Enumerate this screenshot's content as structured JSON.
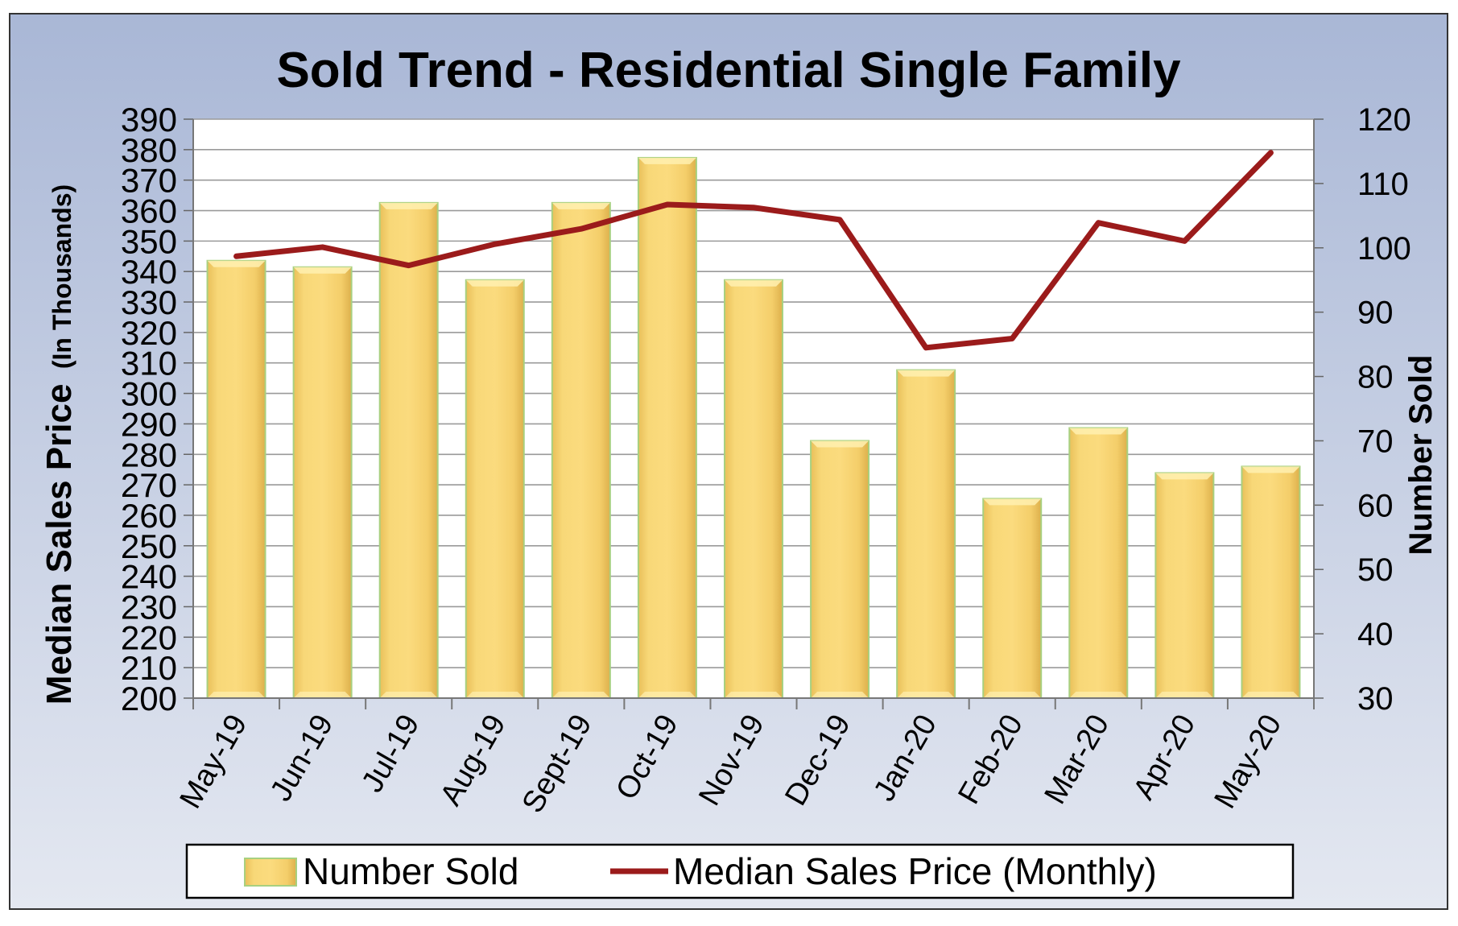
{
  "chart_data": {
    "type": "bar",
    "title": "Sold Trend - Residential Single Family",
    "categories": [
      "May-19",
      "Jun-19",
      "Jul-19",
      "Aug-19",
      "Sept-19",
      "Oct-19",
      "Nov-19",
      "Dec-19",
      "Jan-20",
      "Feb-20",
      "Mar-20",
      "Apr-20",
      "May-20"
    ],
    "series": [
      {
        "name": "Number Sold",
        "type": "bar",
        "axis": "right",
        "color": "#F7D26E",
        "values": [
          98,
          97,
          107,
          95,
          107,
          114,
          95,
          70,
          81,
          61,
          72,
          65,
          66
        ]
      },
      {
        "name": "Median Sales Price (Monthly)",
        "type": "line",
        "axis": "left",
        "color": "#9B1B1B",
        "values": [
          345,
          348,
          342,
          349,
          354,
          362,
          361,
          357,
          315,
          318,
          356,
          350,
          379
        ]
      }
    ],
    "ylabel": "Median Sales Price",
    "ylabel_note": "(In Thousands)",
    "y2label": "Number Sold",
    "ylim": [
      200,
      390
    ],
    "yticks": [
      "200",
      "210",
      "220",
      "230",
      "240",
      "250",
      "260",
      "270",
      "280",
      "290",
      "300",
      "310",
      "320",
      "330",
      "340",
      "350",
      "360",
      "370",
      "380",
      "390"
    ],
    "y2lim": [
      30,
      120
    ],
    "y2ticks": [
      "30",
      "40",
      "50",
      "60",
      "70",
      "80",
      "90",
      "100",
      "110",
      "120"
    ],
    "grid": true,
    "legend": "bottom",
    "colors": {
      "background_top": "#A9B7D6",
      "background_bottom": "#E4E8F1",
      "plot_area": "#FFFFFF",
      "gridline": "#9A9A9A",
      "bar_fill": "#F7D26E",
      "bar_edge": "#A8D080",
      "line": "#9B1B1B"
    }
  }
}
